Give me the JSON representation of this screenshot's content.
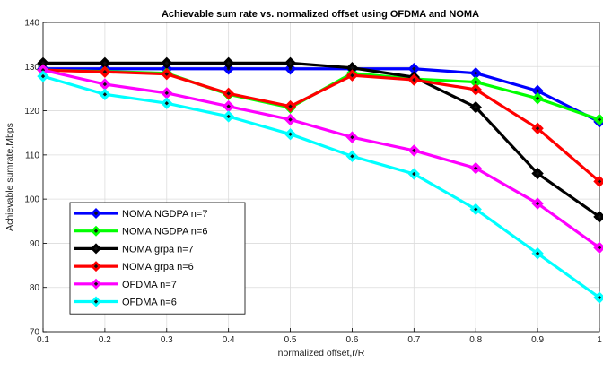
{
  "chart_data": {
    "type": "line",
    "title": "Achievable sum rate vs. normalized offset using OFDMA and NOMA",
    "xlabel": "normalized offset,r/R",
    "ylabel": "Achievable sumrate,Mbps",
    "xlim": [
      0.1,
      1
    ],
    "ylim": [
      70,
      140
    ],
    "xticks": [
      0.1,
      0.2,
      0.3,
      0.4,
      0.5,
      0.6,
      0.7,
      0.8,
      0.9,
      1
    ],
    "xtick_labels": [
      "0.1",
      "0.2",
      "0.3",
      "0.4",
      "0.5",
      "0.6",
      "0.7",
      "0.8",
      "0.9",
      "1"
    ],
    "yticks": [
      70,
      80,
      90,
      100,
      110,
      120,
      130,
      140
    ],
    "ytick_labels": [
      "70",
      "80",
      "90",
      "100",
      "110",
      "120",
      "130",
      "140"
    ],
    "grid": true,
    "legend_position": "lower-left",
    "x": [
      0.1,
      0.2,
      0.3,
      0.4,
      0.5,
      0.6,
      0.7,
      0.8,
      0.9,
      1
    ],
    "series": [
      {
        "name": "NOMA,NGDPA n=7",
        "color": "#0000ff",
        "marker": "diamond",
        "values": [
          129.5,
          129.5,
          129.5,
          129.5,
          129.5,
          129.5,
          129.5,
          128.5,
          124.5,
          117.5
        ]
      },
      {
        "name": "NOMA,NGDPA n=6",
        "color": "#00ff00",
        "marker": "diamond",
        "values": [
          129.2,
          128.9,
          128.5,
          123.7,
          120.7,
          128.5,
          127.2,
          126.5,
          122.8,
          118
        ]
      },
      {
        "name": "NOMA,grpa n=7",
        "color": "#000000",
        "marker": "diamond",
        "values": [
          130.8,
          130.8,
          130.8,
          130.8,
          130.8,
          129.7,
          127.6,
          120.8,
          105.8,
          96
        ]
      },
      {
        "name": "NOMA,grpa n=6",
        "color": "#ff0000",
        "marker": "diamond",
        "values": [
          129.2,
          128.8,
          128.3,
          123.9,
          121,
          128,
          127,
          124.8,
          116,
          104
        ]
      },
      {
        "name": "OFDMA n=7",
        "color": "#ff00ff",
        "marker": "diamond",
        "values": [
          129.2,
          126,
          124,
          121,
          118,
          114,
          111,
          107,
          99,
          89
        ]
      },
      {
        "name": "OFDMA n=6",
        "color": "#00ffff",
        "marker": "diamond",
        "values": [
          127.8,
          123.7,
          121.7,
          118.7,
          114.7,
          109.7,
          105.7,
          97.7,
          87.7,
          77.7
        ]
      }
    ]
  }
}
